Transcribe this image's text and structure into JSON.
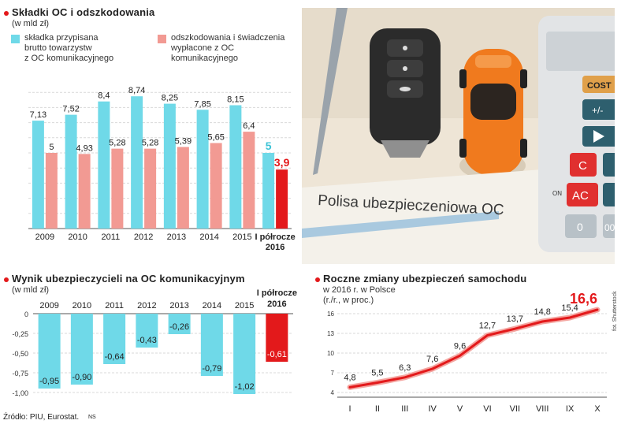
{
  "colors": {
    "cyan": "#6fd9e8",
    "pink": "#f29a93",
    "red": "#e3191b",
    "grid": "#d9d9d9"
  },
  "photo": {
    "policy_text": "Polisa ubezpieczeniowa OC",
    "credit": "fot. Shutterstock",
    "calc_keys": [
      "COST",
      "+/-",
      "C",
      "ON",
      "AC",
      "0",
      "00"
    ]
  },
  "charts": {
    "top": {
      "title": "Składki OC i odszkodowania",
      "subtitle": "(w mld zł)",
      "legend": [
        {
          "label_lines": [
            "składka przypisana",
            "brutto towarzystw",
            "z OC komunikacyjnego"
          ],
          "color": "#6fd9e8"
        },
        {
          "label_lines": [
            "odszkodowania i świadczenia",
            "wypłacone z OC",
            "komunikacyjnego"
          ],
          "color": "#f29a93"
        }
      ]
    },
    "bottom_left": {
      "title": "Wynik ubezpieczycieli na OC komunikacyjnym",
      "subtitle": "(w mld zł)"
    },
    "bottom_right": {
      "title": "Roczne zmiany ubezpieczeń samochodu",
      "subtitle_lines": [
        "w 2016 r. w Polsce",
        "(r./r., w proc.)"
      ]
    }
  },
  "source": "Źródło: PIU, Eurostat.",
  "author": "NS",
  "chart_data": [
    {
      "type": "bar",
      "categories": [
        "2009",
        "2010",
        "2011",
        "2012",
        "2013",
        "2014",
        "2015",
        "I półrocze 2016"
      ],
      "series": [
        {
          "name": "składka przypisana brutto towarzystw z OC komunikacyjnego",
          "values": [
            7.13,
            7.52,
            8.4,
            8.74,
            8.25,
            7.85,
            8.15,
            5
          ]
        },
        {
          "name": "odszkodowania i świadczenia wypłacone z OC komunikacyjnego",
          "values": [
            5,
            4.93,
            5.28,
            5.28,
            5.39,
            5.65,
            6.4,
            3.9
          ]
        }
      ],
      "value_labels": [
        [
          "7,13",
          "7,52",
          "8,4",
          "8,74",
          "8,25",
          "7,85",
          "8,15",
          "5"
        ],
        [
          "5",
          "4,93",
          "5,28",
          "5,28",
          "5,39",
          "5,65",
          "6,4",
          "3,9"
        ]
      ],
      "grid": true
    },
    {
      "type": "bar",
      "categories": [
        "2009",
        "2010",
        "2011",
        "2012",
        "2013",
        "2014",
        "2015",
        "I półrocze 2016"
      ],
      "values": [
        -0.95,
        -0.9,
        -0.64,
        -0.43,
        -0.26,
        -0.79,
        -1.02,
        -0.61
      ],
      "value_labels": [
        "-0,95",
        "-0,90",
        "-0,64",
        "-0,43",
        "-0,26",
        "-0,79",
        "-1,02",
        "-0,61"
      ],
      "ylim": [
        -1.0,
        0
      ],
      "yticks": [
        "0",
        "-0,25",
        "-0,50",
        "-0,75",
        "-1,00"
      ],
      "grid": true
    },
    {
      "type": "line",
      "x": [
        "I",
        "II",
        "III",
        "IV",
        "V",
        "VI",
        "VII",
        "VIII",
        "IX",
        "X"
      ],
      "values": [
        4.8,
        5.5,
        6.3,
        7.6,
        9.6,
        12.7,
        13.7,
        14.8,
        15.4,
        16.6
      ],
      "value_labels": [
        "4,8",
        "5,5",
        "6,3",
        "7,6",
        "9,6",
        "12,7",
        "13,7",
        "14,8",
        "15,4",
        "16,6"
      ],
      "ylim": [
        4,
        16
      ],
      "yticks": [
        "4",
        "7",
        "10",
        "13",
        "16"
      ],
      "grid": true
    }
  ]
}
